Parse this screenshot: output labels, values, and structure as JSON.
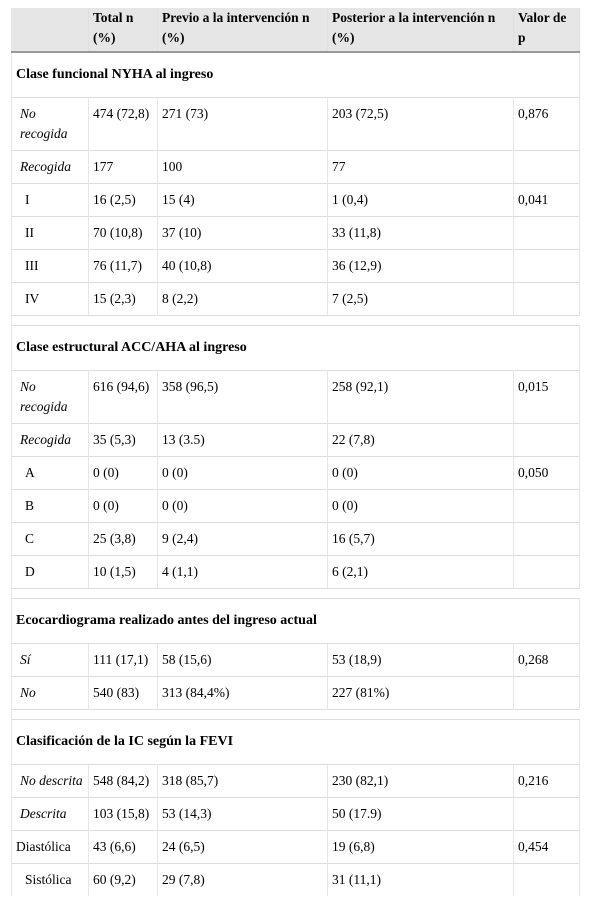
{
  "headers": [
    "",
    "Total n (%)",
    "Previo a la intervención n (%)",
    "Posterior a la intervención n (%)",
    "Valor de p"
  ],
  "sections": [
    {
      "title": "Clase funcional NYHA al ingreso",
      "rows": [
        {
          "label": "No recogida",
          "style": "it",
          "total": "474 (72,8)",
          "pre": "271 (73)",
          "post": "203 (72,5)",
          "p": "0,876"
        },
        {
          "label": "Recogida",
          "style": "it",
          "total": "177",
          "pre": "100",
          "post": "77",
          "p": ""
        },
        {
          "label": "I",
          "style": "ind",
          "total": "16 (2,5)",
          "pre": "15 (4)",
          "post": "1 (0,4)",
          "p": "0,041"
        },
        {
          "label": "II",
          "style": "ind",
          "total": "70 (10,8)",
          "pre": "37 (10)",
          "post": "33 (11,8)",
          "p": ""
        },
        {
          "label": "III",
          "style": "ind",
          "total": "76 (11,7)",
          "pre": "40 (10,8)",
          "post": "36 (12,9)",
          "p": ""
        },
        {
          "label": "IV",
          "style": "ind",
          "total": "15 (2,3)",
          "pre": "8 (2,2)",
          "post": "7 (2,5)",
          "p": ""
        }
      ]
    },
    {
      "title": "Clase estructural ACC/AHA al ingreso",
      "rows": [
        {
          "label": "No recogida",
          "style": "it",
          "total": "616 (94,6)",
          "pre": "358 (96,5)",
          "post": "258 (92,1)",
          "p": "0,015"
        },
        {
          "label": "Recogida",
          "style": "it",
          "total": "35 (5,3)",
          "pre": "13 (3.5)",
          "post": "22 (7,8)",
          "p": ""
        },
        {
          "label": "A",
          "style": "ind",
          "total": "0 (0)",
          "pre": "0 (0)",
          "post": "0 (0)",
          "p": "0,050"
        },
        {
          "label": "B",
          "style": "ind",
          "total": "0 (0)",
          "pre": "0 (0)",
          "post": "0 (0)",
          "p": ""
        },
        {
          "label": "C",
          "style": "ind",
          "total": "25 (3,8)",
          "pre": "9 (2,4)",
          "post": "16 (5,7)",
          "p": ""
        },
        {
          "label": "D",
          "style": "ind",
          "total": "10 (1,5)",
          "pre": "4 (1,1)",
          "post": "6 (2,1)",
          "p": ""
        }
      ]
    },
    {
      "title": "Ecocardiograma realizado antes del ingreso actual",
      "rows": [
        {
          "label": "Sí",
          "style": "it",
          "total": "111 (17,1)",
          "pre": "58 (15,6)",
          "post": "53 (18,9)",
          "p": "0,268"
        },
        {
          "label": "No",
          "style": "it",
          "total": "540 (83)",
          "pre": "313 (84,4%)",
          "post": "227 (81%)",
          "p": ""
        }
      ]
    },
    {
      "title": "Clasificación de la IC según la FEVI",
      "rows": [
        {
          "label": "No descrita",
          "style": "it",
          "total": "548 (84,2)",
          "pre": "318 (85,7)",
          "post": "230 (82,1)",
          "p": "0,216"
        },
        {
          "label": "Descrita",
          "style": "it",
          "total": "103 (15,8)",
          "pre": "53 (14,3)",
          "post": "50 (17.9)",
          "p": ""
        },
        {
          "label": "Diastólica",
          "style": "plain",
          "total": "43 (6,6)",
          "pre": "24 (6,5)",
          "post": "19 (6,8)",
          "p": "0,454"
        },
        {
          "label": "Sistólica",
          "style": "ind2",
          "total": "60 (9,2)",
          "pre": "29 (7,8)",
          "post": "31 (11,1)",
          "p": ""
        }
      ]
    }
  ]
}
